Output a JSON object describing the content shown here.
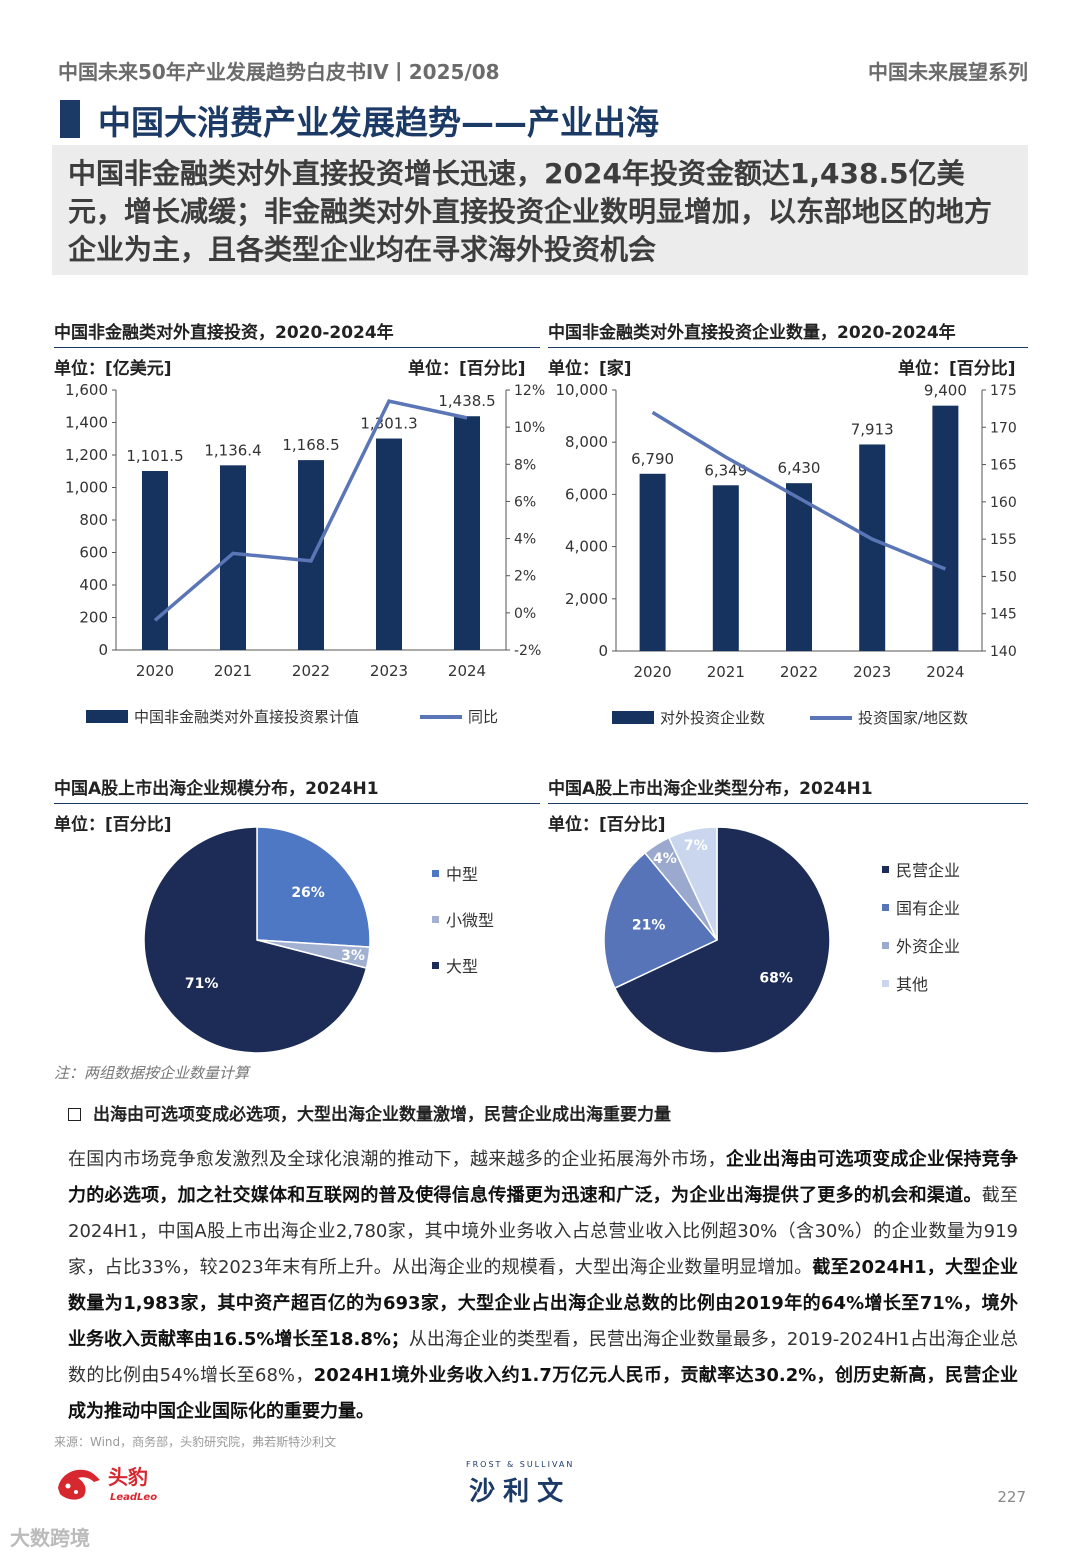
{
  "header": {
    "left": "中国未来50年产业发展趋势白皮书IV丨2025/08",
    "right": "中国未来展望系列"
  },
  "title": "中国大消费产业发展趋势——产业出海",
  "summary": "中国非金融类对外直接投资增长迅速，2024年投资金额达1,438.5亿美元，增长减缓；非金融类对外直接投资企业数明显增加，以东部地区的地方企业为主，且各类型企业均在寻求海外投资机会",
  "charts": {
    "c1": {
      "title": "中国非金融类对外直接投资，2020-2024年",
      "unit_left": "单位：[亿美元]",
      "unit_right": "单位：[百分比]"
    },
    "c2": {
      "title": "中国非金融类对外直接投资企业数量，2020-2024年",
      "unit_left": "单位：[家]",
      "unit_right": "单位：[百分比]"
    },
    "c3": {
      "title": "中国A股上市出海企业规模分布，2024H1",
      "unit": "单位：[百分比]"
    },
    "c4": {
      "title": "中国A股上市出海企业类型分布，2024H1",
      "unit": "单位：[百分比]"
    }
  },
  "chart_data": [
    {
      "type": "bar",
      "categories": [
        "2020",
        "2021",
        "2022",
        "2023",
        "2024"
      ],
      "series": [
        {
          "name": "中国非金融类对外直接投资累计值",
          "type": "bar",
          "values": [
            1101.5,
            1136.4,
            1168.5,
            1301.3,
            1438.5
          ],
          "labels": [
            "1,101.5",
            "1,136.4",
            "1,168.5",
            "1,301.3",
            "1,438.5"
          ]
        },
        {
          "name": "同比",
          "type": "line",
          "axis": "right",
          "values": [
            -0.4,
            3.2,
            2.8,
            11.4,
            10.5
          ]
        }
      ],
      "ylim": [
        0,
        1600
      ],
      "yticks": [
        "0",
        "200",
        "400",
        "600",
        "800",
        "1,000",
        "1,200",
        "1,400",
        "1,600"
      ],
      "y2lim": [
        -2,
        12
      ],
      "y2ticks": [
        "-2%",
        "0%",
        "2%",
        "4%",
        "6%",
        "8%",
        "10%",
        "12%"
      ],
      "colors": {
        "bar": "#15335e",
        "line": "#5b76b6"
      },
      "legend": "bottom"
    },
    {
      "type": "bar",
      "categories": [
        "2020",
        "2021",
        "2022",
        "2023",
        "2024"
      ],
      "series": [
        {
          "name": "对外投资企业数",
          "type": "bar",
          "values": [
            6790,
            6349,
            6430,
            7913,
            9400
          ],
          "labels": [
            "6,790",
            "6,349",
            "6,430",
            "7,913",
            "9,400"
          ]
        },
        {
          "name": "投资国家/地区数",
          "type": "line",
          "axis": "right",
          "values": [
            172,
            166,
            160.5,
            155,
            151
          ]
        }
      ],
      "ylim": [
        0,
        10000
      ],
      "yticks": [
        "0",
        "2,000",
        "4,000",
        "6,000",
        "8,000",
        "10,000"
      ],
      "y2lim": [
        140,
        175
      ],
      "y2ticks": [
        "140",
        "145",
        "150",
        "155",
        "160",
        "165",
        "170",
        "175"
      ],
      "colors": {
        "bar": "#15335e",
        "line": "#5b76b6"
      },
      "legend": "bottom"
    },
    {
      "type": "pie",
      "slices": [
        {
          "name": "中型",
          "value": 26,
          "label": "26%",
          "color": "#4f78c4"
        },
        {
          "name": "小微型",
          "value": 3,
          "label": "3%",
          "color": "#a2b0d1"
        },
        {
          "name": "大型",
          "value": 71,
          "label": "71%",
          "color": "#1c2c56"
        }
      ],
      "legend": "right"
    },
    {
      "type": "pie",
      "slices": [
        {
          "name": "民营企业",
          "value": 68,
          "label": "68%",
          "color": "#1c2c56"
        },
        {
          "name": "国有企业",
          "value": 21,
          "label": "21%",
          "color": "#5874b8"
        },
        {
          "name": "外资企业",
          "value": 4,
          "label": "4%",
          "color": "#9aa9cd"
        },
        {
          "name": "其他",
          "value": 7,
          "label": "7%",
          "color": "#c9d6ee"
        }
      ],
      "legend": "right"
    }
  ],
  "note": "注：两组数据按企业数量计算",
  "bullet": "出海由可选项变成必选项，大型出海企业数量激增，民营企业成出海重要力量",
  "body": [
    {
      "t": "在国内市场竞争愈发激烈及全球化浪潮的推动下，越来越多的企业拓展海外市场，",
      "b": false
    },
    {
      "t": "企业出海由可选项变成企业保持竞争力的必选项，加之社交媒体和互联网的普及使得信息传播更为迅速和广泛，为企业出海提供了更多的机会和渠道。",
      "b": true
    },
    {
      "t": "截至2024H1，中国A股上市出海企业2,780家，其中境外业务收入占总营业收入比例超30%（含30%）的企业数量为919家，占比33%，较2023年末有所上升。从出海企业的规模看，大型出海企业数量明显增加。",
      "b": false
    },
    {
      "t": "截至2024H1，大型企业数量为1,983家，其中资产超百亿的为693家，大型企业占出海企业总数的比例由2019年的64%增长至71%，境外业务收入贡献率由16.5%增长至18.8%；",
      "b": true
    },
    {
      "t": "从出海企业的类型看，民营出海企业数量最多，2019-2024H1占出海企业总数的比例由54%增长至68%，",
      "b": false
    },
    {
      "t": "2024H1境外业务收入约1.7万亿元人民币，贡献率达30.2%，创历史新高，民营企业成为推动中国企业国际化的重要力量。",
      "b": true
    }
  ],
  "source": "来源：Wind，商务部，头豹研究院，弗若斯特沙利文",
  "logos": {
    "leadleo_cn": "头豹",
    "leadleo_en": "LeadLeo",
    "fs_en": "FROST & SULLIVAN",
    "fs_cn": "沙利文"
  },
  "page_number": "227",
  "watermark": "大数跨境"
}
